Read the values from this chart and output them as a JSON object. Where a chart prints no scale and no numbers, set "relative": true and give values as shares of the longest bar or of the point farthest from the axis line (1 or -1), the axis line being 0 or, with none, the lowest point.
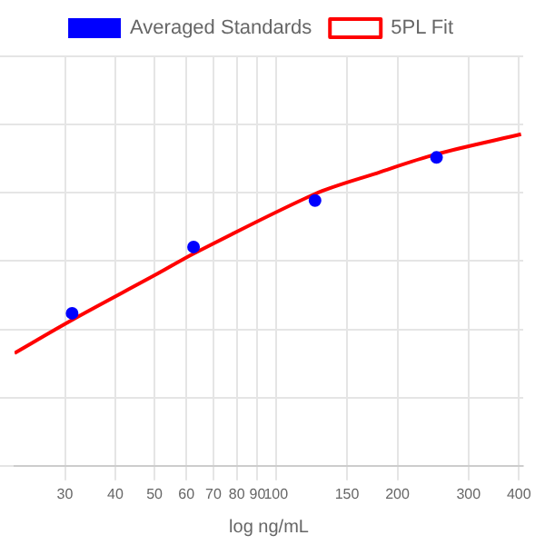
{
  "chart_data": {
    "type": "scatter",
    "xlabel": "log ng/mL",
    "log": "x",
    "relative": true,
    "grid": true,
    "legend": "top",
    "tick_labels": "x",
    "xlim": [
      22.5,
      410
    ],
    "xticks": [
      30,
      40,
      50,
      60,
      70,
      80,
      90,
      100,
      150,
      200,
      300,
      400
    ],
    "series": [
      {
        "name": "Averaged Standards",
        "type": "scatter",
        "color": "#0000ff",
        "marker": "circle",
        "x": [
          31.25,
          62.5,
          125,
          250
        ],
        "values": [
          0.46,
          0.66,
          0.8,
          0.93
        ]
      },
      {
        "name": "5PL Fit",
        "type": "line",
        "color": "#ff0000",
        "marker": "none",
        "line_style": "solid",
        "x": [
          22.5,
          31.25,
          51,
          62.5,
          125,
          175,
          250,
          405
        ],
        "values": [
          0.34,
          0.44,
          0.58,
          0.64,
          0.82,
          0.88,
          0.94,
          1.0
        ]
      }
    ]
  }
}
